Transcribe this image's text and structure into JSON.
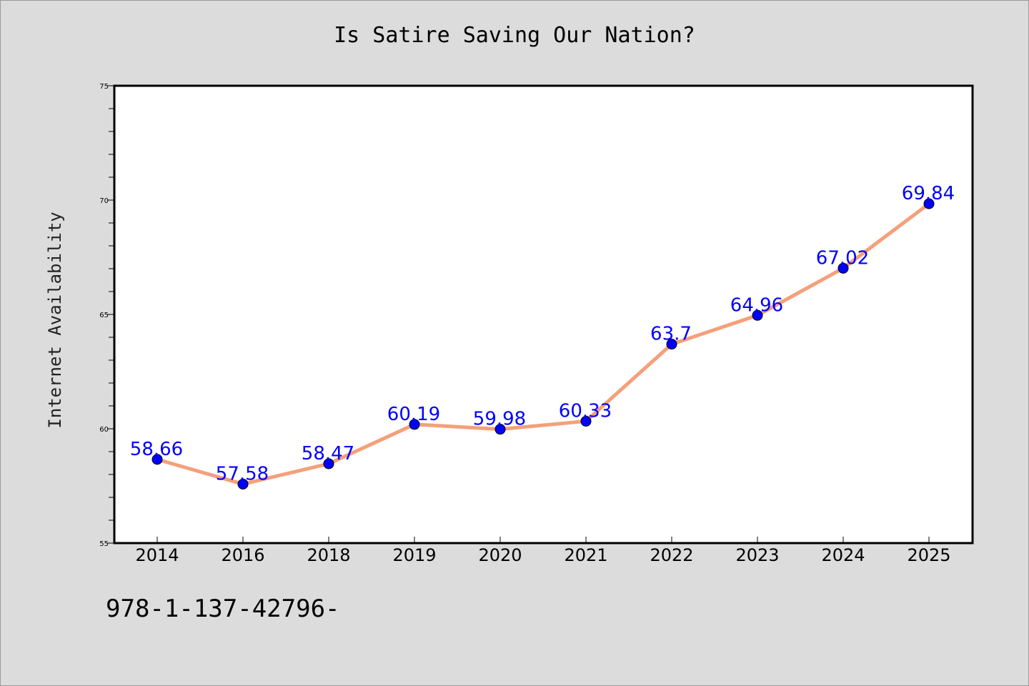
{
  "chart_data": {
    "type": "line",
    "title": "Is Satire Saving Our Nation?",
    "xlabel": "",
    "ylabel": "Internet Availability",
    "categories": [
      "2014",
      "2016",
      "2018",
      "2019",
      "2020",
      "2021",
      "2022",
      "2023",
      "2024",
      "2025"
    ],
    "values": [
      58.66,
      57.58,
      58.47,
      60.19,
      59.98,
      60.33,
      63.7,
      64.96,
      67.02,
      69.84
    ],
    "data_labels": [
      "58.66",
      "57.58",
      "58.47",
      "60.19",
      "59.98",
      "60.33",
      "63.7",
      "64.96",
      "67.02",
      "69.84"
    ],
    "ylim": [
      55,
      75
    ],
    "yticks": [
      "55",
      "60",
      "65",
      "70",
      "75"
    ],
    "grid": false,
    "line_color": "#f4a07a",
    "marker_color": "#0000ff"
  },
  "footer": {
    "code": "978-1-137-42796-"
  }
}
